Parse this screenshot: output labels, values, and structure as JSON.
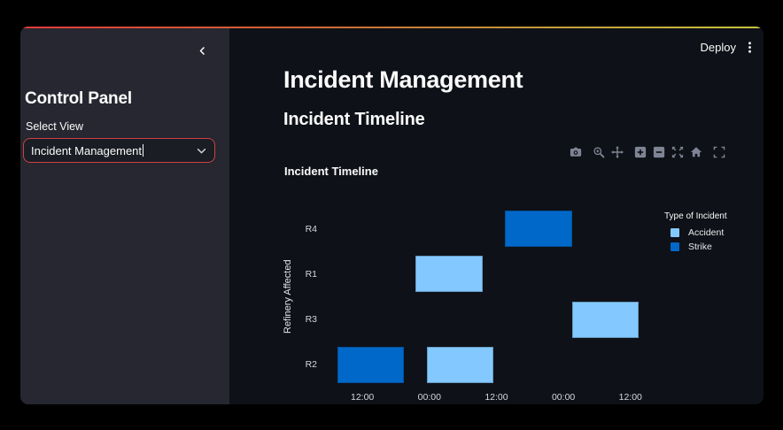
{
  "header": {
    "deploy_label": "Deploy"
  },
  "sidebar": {
    "title": "Control Panel",
    "select_view": {
      "label": "Select View",
      "value": "Incident Management"
    }
  },
  "main": {
    "title": "Incident Management",
    "section_title": "Incident Timeline"
  },
  "modebar": {
    "groups": [
      [
        "camera-icon"
      ],
      [
        "zoom-icon",
        "pan-icon"
      ],
      [
        "zoom-in-icon",
        "zoom-out-icon",
        "autoscale-icon",
        "reset-axes-icon"
      ],
      [
        "fullscreen-icon"
      ]
    ]
  },
  "colors": {
    "accent": "#ff4b4b",
    "background": "#0e1117",
    "sidebar_background": "#262730",
    "text": "#fafafa",
    "accident": "#83c9ff",
    "strike": "#0068c9"
  },
  "chart_data": {
    "type": "timeline",
    "title": "Incident Timeline",
    "xlabel": "",
    "ylabel": "Refinery Affected",
    "legend_title": "Type of Incident",
    "legend_position": "right",
    "grid": false,
    "x_unit_note": "hours offset from first day 00:00 (estimated; axis shows times only)",
    "x_range": [
      5,
      64
    ],
    "x_ticks": [
      {
        "pos": 12,
        "label": "12:00"
      },
      {
        "pos": 24,
        "label": "00:00"
      },
      {
        "pos": 36,
        "label": "12:00"
      },
      {
        "pos": 48,
        "label": "00:00"
      },
      {
        "pos": 60,
        "label": "12:00"
      }
    ],
    "y_categories": [
      "R4",
      "R1",
      "R3",
      "R2"
    ],
    "series": [
      {
        "name": "Accident",
        "color": "#83c9ff",
        "bars": [
          {
            "y": "R1",
            "start": 21.5,
            "end": 33.5
          },
          {
            "y": "R2",
            "start": 23.5,
            "end": 35.5
          },
          {
            "y": "R3",
            "start": 49.5,
            "end": 61.5
          }
        ]
      },
      {
        "name": "Strike",
        "color": "#0068c9",
        "bars": [
          {
            "y": "R2",
            "start": 7.5,
            "end": 19.5
          },
          {
            "y": "R4",
            "start": 37.5,
            "end": 49.5
          }
        ]
      }
    ]
  }
}
